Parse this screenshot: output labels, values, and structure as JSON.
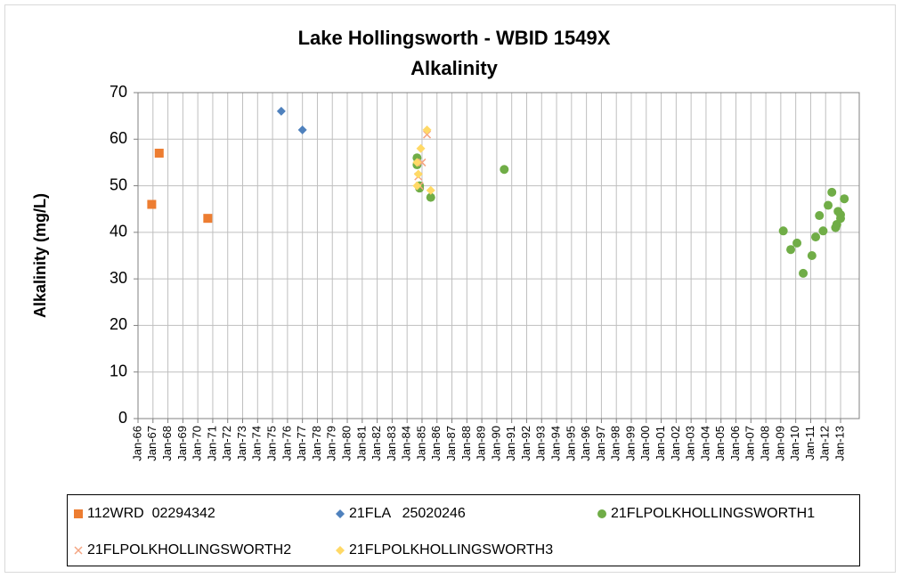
{
  "chart_data": {
    "type": "scatter",
    "title": "Lake Hollingsworth - WBID 1549X",
    "subtitle": "Alkalinity",
    "y_label": "Alkalinity (mg/L)",
    "xlim": [
      "Jan-66",
      "Apr-14"
    ],
    "xticks": [
      "Jan-66",
      "Jan-67",
      "Jan-68",
      "Jan-69",
      "Jan-70",
      "Jan-71",
      "Jan-72",
      "Jan-73",
      "Jan-74",
      "Jan-75",
      "Jan-76",
      "Jan-77",
      "Jan-78",
      "Jan-79",
      "Jan-80",
      "Jan-81",
      "Jan-82",
      "Jan-83",
      "Jan-84",
      "Jan-85",
      "Jan-86",
      "Jan-87",
      "Jan-88",
      "Jan-89",
      "Jan-90",
      "Jan-91",
      "Jan-92",
      "Jan-93",
      "Jan-94",
      "Jan-95",
      "Jan-96",
      "Jan-97",
      "Jan-98",
      "Jan-99",
      "Jan-00",
      "Jan-01",
      "Jan-02",
      "Jan-03",
      "Jan-04",
      "Jan-05",
      "Jan-06",
      "Jan-07",
      "Jan-08",
      "Jan-09",
      "Jan-10",
      "Jan-11",
      "Jan-12",
      "Jan-13"
    ],
    "ylim": [
      0,
      70
    ],
    "yticks": [
      0,
      10,
      20,
      30,
      40,
      50,
      60,
      70
    ],
    "grid": true,
    "legend": "bottom",
    "series": [
      {
        "name": "112WRD  02294342",
        "color": "#ED7D31",
        "marker": "square",
        "x": [
          "Dec-66",
          "Jun-67",
          "Sep-70"
        ],
        "values": [
          46,
          57,
          43
        ]
      },
      {
        "name": "21FLA   25020246",
        "color": "#4F81BD",
        "marker": "diamond",
        "x": [
          "Aug-75",
          "Jan-77"
        ],
        "values": [
          66,
          62
        ]
      },
      {
        "name": "21FLPOLKHOLLINGSWORTH1",
        "color": "#70AD47",
        "marker": "circle",
        "x": [
          "Sep-84",
          "Sep-84",
          "Nov-84",
          "Nov-84",
          "Aug-85",
          "Jul-90",
          "Mar-09",
          "Sep-09",
          "Feb-10",
          "Jul-10",
          "Feb-11",
          "May-11",
          "Aug-11",
          "Nov-11",
          "Mar-12",
          "Jun-12",
          "Sep-12",
          "Oct-12",
          "Nov-12",
          "Jan-13",
          "Jan-13",
          "Apr-13"
        ],
        "values": [
          56,
          54.5,
          50,
          49.5,
          47.5,
          53.5,
          40.3,
          36.3,
          37.7,
          31.2,
          35,
          39,
          43.6,
          40.3,
          45.8,
          48.6,
          41,
          41.7,
          44.5,
          43.8,
          43,
          47.2
        ]
      },
      {
        "name": "21FLPOLKHOLLINGSWORTH2",
        "color": "#F4A582",
        "marker": "x",
        "x": [
          "Oct-84",
          "Nov-84",
          "Jan-85",
          "May-85"
        ],
        "values": [
          52,
          50,
          55,
          61
        ]
      },
      {
        "name": "21FLPOLKHOLLINGSWORTH3",
        "color": "#FFD966",
        "marker": "diamond",
        "x": [
          "Sep-84",
          "Oct-84",
          "Sep-84",
          "Dec-84",
          "May-85",
          "Aug-85"
        ],
        "values": [
          55,
          52.5,
          50,
          58,
          62,
          49
        ]
      }
    ]
  }
}
